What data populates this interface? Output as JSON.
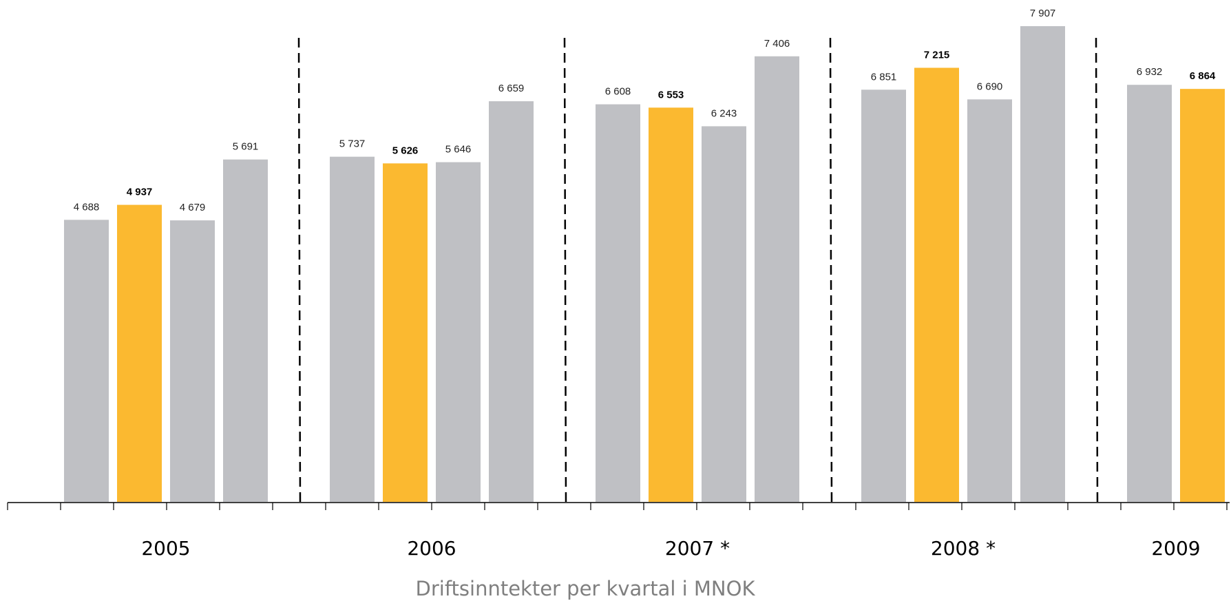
{
  "chart_data": {
    "type": "bar",
    "title": "",
    "xlabel": "Driftsinntekter per kvartal i MNOK",
    "ylabel": "",
    "ylim": [
      0,
      7907
    ],
    "grid": false,
    "legend": "none",
    "colors": {
      "normal": "#bfc0c4",
      "highlight": "#fbb930",
      "axis": "#000000",
      "caption": "#7f7f7f"
    },
    "groups": [
      {
        "label": "2005",
        "values": [
          4688,
          4937,
          4679,
          5691
        ],
        "labels": [
          "4 688",
          "4 937",
          "4 679",
          "5 691"
        ]
      },
      {
        "label": "2006",
        "values": [
          5737,
          5626,
          5646,
          6659
        ],
        "labels": [
          "5 737",
          "5 626",
          "5 646",
          "6 659"
        ]
      },
      {
        "label": "2007 *",
        "values": [
          6608,
          6553,
          6243,
          7406
        ],
        "labels": [
          "6 608",
          "6 553",
          "6 243",
          "7 406"
        ]
      },
      {
        "label": "2008 *",
        "values": [
          6851,
          7215,
          6690,
          7907
        ],
        "labels": [
          "6 851",
          "7 215",
          "6 690",
          "7 907"
        ]
      },
      {
        "label": "2009",
        "values": [
          6932,
          6864
        ],
        "labels": [
          "6 932",
          "6 864"
        ]
      }
    ],
    "highlight_quarter_index": 1
  }
}
